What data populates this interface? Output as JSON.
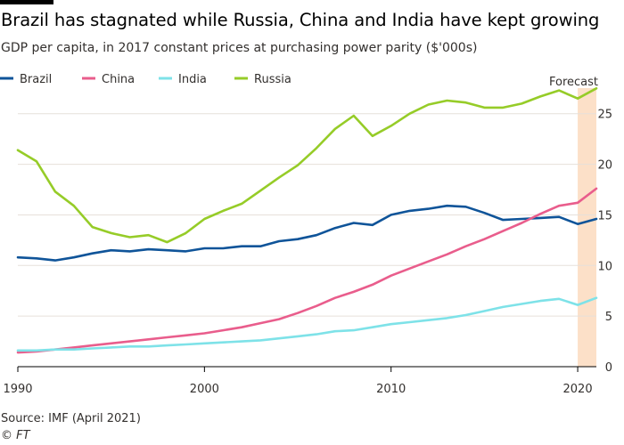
{
  "title": "Brazil has stagnated while Russia, China and India have kept growing",
  "subtitle": "GDP per capita, in 2017 constant prices at purchasing power parity ($'000s)",
  "source": "Source: IMF (April 2021)",
  "credit": "© FT",
  "chart_data": {
    "type": "line",
    "x": [
      1990,
      1991,
      1992,
      1993,
      1994,
      1995,
      1996,
      1997,
      1998,
      1999,
      2000,
      2001,
      2002,
      2003,
      2004,
      2005,
      2006,
      2007,
      2008,
      2009,
      2010,
      2011,
      2012,
      2013,
      2014,
      2015,
      2016,
      2017,
      2018,
      2019,
      2020,
      2021
    ],
    "series": [
      {
        "name": "Brazil",
        "color": "#0f5499",
        "values": [
          10.8,
          10.7,
          10.5,
          10.8,
          11.2,
          11.5,
          11.4,
          11.6,
          11.5,
          11.4,
          11.7,
          11.7,
          11.9,
          11.9,
          12.4,
          12.6,
          13.0,
          13.7,
          14.2,
          14.0,
          15.0,
          15.4,
          15.6,
          15.9,
          15.8,
          15.2,
          14.5,
          14.6,
          14.7,
          14.8,
          14.1,
          14.6
        ]
      },
      {
        "name": "China",
        "color": "#e95d8c",
        "values": [
          1.4,
          1.5,
          1.7,
          1.9,
          2.1,
          2.3,
          2.5,
          2.7,
          2.9,
          3.1,
          3.3,
          3.6,
          3.9,
          4.3,
          4.7,
          5.3,
          6.0,
          6.8,
          7.4,
          8.1,
          9.0,
          9.7,
          10.4,
          11.1,
          11.9,
          12.6,
          13.4,
          14.2,
          15.1,
          15.9,
          16.2,
          17.6
        ]
      },
      {
        "name": "India",
        "color": "#7ee2e8",
        "values": [
          1.6,
          1.6,
          1.7,
          1.7,
          1.8,
          1.9,
          2.0,
          2.0,
          2.1,
          2.2,
          2.3,
          2.4,
          2.5,
          2.6,
          2.8,
          3.0,
          3.2,
          3.5,
          3.6,
          3.9,
          4.2,
          4.4,
          4.6,
          4.8,
          5.1,
          5.5,
          5.9,
          6.2,
          6.5,
          6.7,
          6.1,
          6.8
        ]
      },
      {
        "name": "Russia",
        "color": "#96cc28",
        "values": [
          21.4,
          20.3,
          17.3,
          15.9,
          13.8,
          13.2,
          12.8,
          13.0,
          12.3,
          13.2,
          14.6,
          15.4,
          16.1,
          17.4,
          18.7,
          19.9,
          21.6,
          23.5,
          24.8,
          22.8,
          23.8,
          25.0,
          25.9,
          26.3,
          26.1,
          25.6,
          25.6,
          26.0,
          26.7,
          27.3,
          26.5,
          27.5
        ]
      }
    ],
    "ylim": [
      0,
      27
    ],
    "yticks": [
      0,
      5,
      10,
      15,
      20,
      25
    ],
    "xlim": [
      1990,
      2021
    ],
    "xticks": [
      1990,
      2000,
      2010,
      2020
    ],
    "forecast": {
      "label": "Forecast",
      "from": 2020,
      "to": 2021,
      "color": "#fce0c8"
    },
    "grid": true,
    "legend_placement": "top-left"
  }
}
